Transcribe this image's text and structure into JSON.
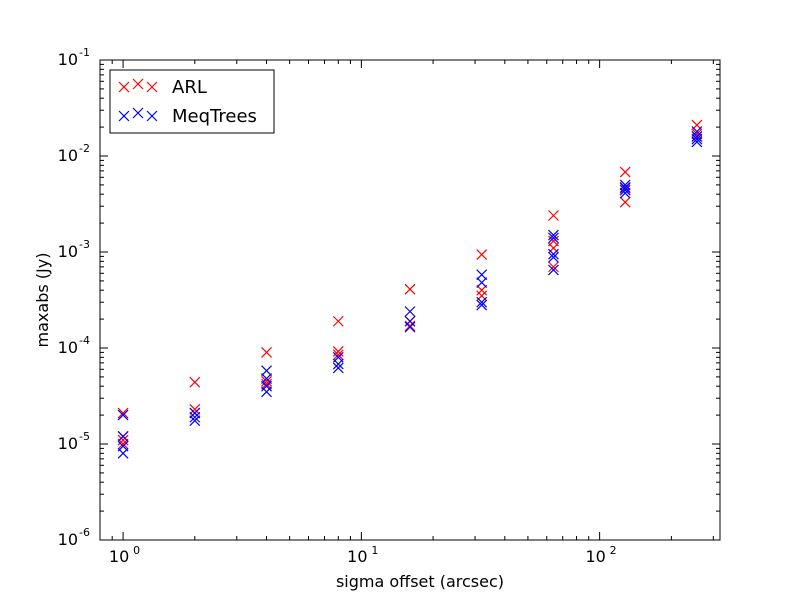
{
  "chart_data": {
    "type": "scatter",
    "title": "",
    "xlabel": "sigma offset (arcsec)",
    "ylabel": "maxabs (Jy)",
    "x_scale": "log",
    "y_scale": "log",
    "xlim": [
      0.8,
      320
    ],
    "ylim": [
      1e-06,
      0.1
    ],
    "grid": false,
    "legend_position": "top-left",
    "x_ticks": [
      {
        "value": 1,
        "base": "10",
        "exp": "0"
      },
      {
        "value": 10,
        "base": "10",
        "exp": "1"
      },
      {
        "value": 100,
        "base": "10",
        "exp": "2"
      }
    ],
    "y_ticks": [
      {
        "value": 1e-06,
        "base": "10",
        "exp": "-6"
      },
      {
        "value": 1e-05,
        "base": "10",
        "exp": "-5"
      },
      {
        "value": 0.0001,
        "base": "10",
        "exp": "-4"
      },
      {
        "value": 0.001,
        "base": "10",
        "exp": "-3"
      },
      {
        "value": 0.01,
        "base": "10",
        "exp": "-2"
      },
      {
        "value": 0.1,
        "base": "10",
        "exp": "-1"
      }
    ],
    "series": [
      {
        "name": "ARL",
        "color": "#ff0000",
        "marker": "x",
        "points": [
          [
            1,
            2.1e-05
          ],
          [
            1,
            1.2e-05
          ],
          [
            1,
            1.1e-05
          ],
          [
            1,
            1e-05
          ],
          [
            2,
            4.4e-05
          ],
          [
            2,
            2.3e-05
          ],
          [
            2,
            2.1e-05
          ],
          [
            4,
            9e-05
          ],
          [
            4,
            4.5e-05
          ],
          [
            4,
            4.2e-05
          ],
          [
            8,
            0.00019
          ],
          [
            8,
            9.2e-05
          ],
          [
            8,
            8.5e-05
          ],
          [
            16,
            0.00041
          ],
          [
            16,
            0.00019
          ],
          [
            16,
            0.00017
          ],
          [
            32,
            0.00094
          ],
          [
            32,
            0.0004
          ],
          [
            32,
            0.00035
          ],
          [
            64,
            0.0024
          ],
          [
            64,
            0.0013
          ],
          [
            64,
            0.0011
          ],
          [
            64,
            0.0007
          ],
          [
            128,
            0.0068
          ],
          [
            128,
            0.0046
          ],
          [
            128,
            0.0033
          ],
          [
            256,
            0.021
          ],
          [
            256,
            0.017
          ],
          [
            256,
            0.016
          ]
        ]
      },
      {
        "name": "MeqTrees",
        "color": "#0000ff",
        "marker": "x",
        "points": [
          [
            1,
            2e-05
          ],
          [
            1,
            1.2e-05
          ],
          [
            1,
            9.5e-06
          ],
          [
            1,
            8e-06
          ],
          [
            2,
            2.1e-05
          ],
          [
            2,
            1.9e-05
          ],
          [
            2,
            1.75e-05
          ],
          [
            4,
            5.8e-05
          ],
          [
            4,
            4.8e-05
          ],
          [
            4,
            4e-05
          ],
          [
            4,
            3.5e-05
          ],
          [
            8,
            8e-05
          ],
          [
            8,
            6.8e-05
          ],
          [
            8,
            6.2e-05
          ],
          [
            16,
            0.00024
          ],
          [
            16,
            0.00019
          ],
          [
            16,
            0.000165
          ],
          [
            32,
            0.00058
          ],
          [
            32,
            0.00048
          ],
          [
            32,
            0.0003
          ],
          [
            32,
            0.00028
          ],
          [
            64,
            0.0015
          ],
          [
            64,
            0.0014
          ],
          [
            64,
            0.00095
          ],
          [
            64,
            0.00088
          ],
          [
            64,
            0.00065
          ],
          [
            128,
            0.005
          ],
          [
            128,
            0.0047
          ],
          [
            128,
            0.0044
          ],
          [
            128,
            0.0041
          ],
          [
            256,
            0.018
          ],
          [
            256,
            0.016
          ],
          [
            256,
            0.015
          ],
          [
            256,
            0.014
          ]
        ]
      }
    ]
  }
}
